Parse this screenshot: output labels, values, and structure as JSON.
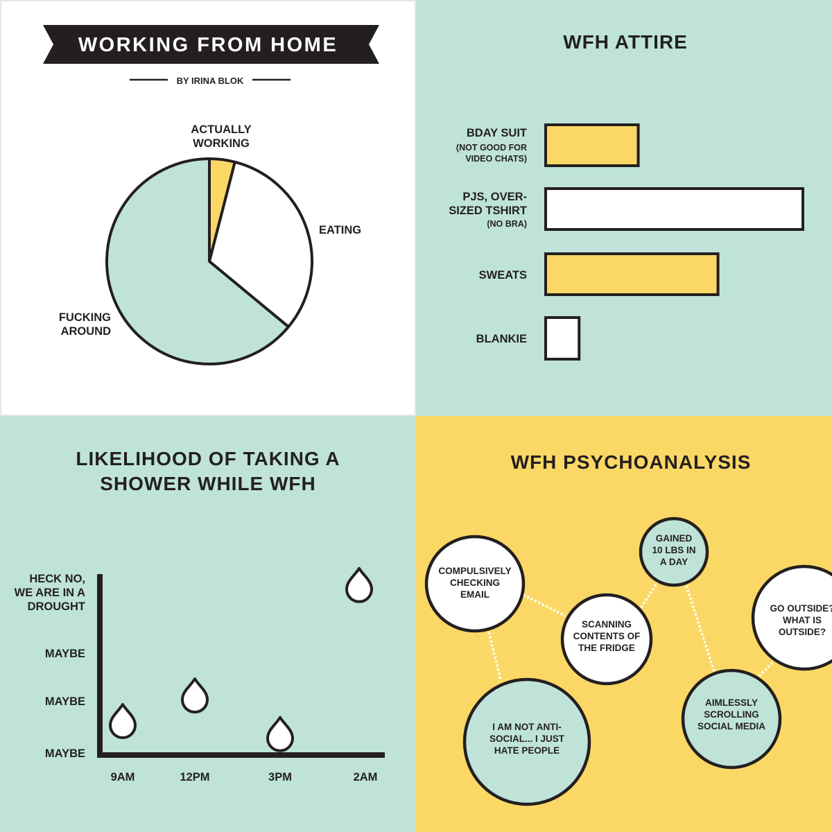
{
  "colors": {
    "dark": "#231f20",
    "teal": "#bfe3d9",
    "yellow": "#fbd865",
    "white": "#ffffff"
  },
  "header": {
    "title": "WORKING FROM HOME",
    "byline": "BY IRINA BLOK"
  },
  "chart_data": [
    {
      "type": "pie",
      "title": "",
      "slices": [
        {
          "label": [
            "ACTUALLY",
            "WORKING"
          ],
          "value": 4,
          "color": "#fbd865"
        },
        {
          "label": [
            "EATING"
          ],
          "value": 32,
          "color": "#ffffff"
        },
        {
          "label": [
            "FUCKING",
            "AROUND"
          ],
          "value": 64,
          "color": "#bfe3d9"
        }
      ]
    },
    {
      "type": "bar",
      "orientation": "horizontal",
      "title": "WFH ATTIRE",
      "categories": [
        {
          "label": [
            "BDAY SUIT"
          ],
          "sub": [
            "(NOT GOOD FOR",
            "VIDEO CHATS)"
          ]
        },
        {
          "label": [
            "PJS, OVER-",
            "SIZED TSHIRT"
          ],
          "sub": [
            "(NO BRA)"
          ]
        },
        {
          "label": [
            "SWEATS"
          ],
          "sub": []
        },
        {
          "label": [
            "BLANKIE"
          ],
          "sub": []
        }
      ],
      "values": [
        36,
        100,
        67,
        13
      ],
      "colors": [
        "#fbd865",
        "#ffffff",
        "#fbd865",
        "#ffffff"
      ]
    },
    {
      "type": "scatter",
      "title": [
        "LIKELIHOOD OF TAKING A",
        "SHOWER WHILE WFH"
      ],
      "x": [
        "9AM",
        "12PM",
        "3PM",
        "2AM"
      ],
      "y_ticks": [
        {
          "label": [
            "MAYBE"
          ],
          "level": 0
        },
        {
          "label": [
            "MAYBE"
          ],
          "level": 1
        },
        {
          "label": [
            "MAYBE"
          ],
          "level": 2
        },
        {
          "label": [
            "HECK NO,",
            "WE ARE IN A",
            "DROUGHT"
          ],
          "level": 3
        }
      ],
      "y": [
        0.6,
        1.1,
        0.35,
        3.2
      ],
      "marker": "water-drop-icon"
    }
  ],
  "psycho": {
    "title": "WFH PSYCHOANALYSIS",
    "bubbles": [
      {
        "text": [
          "COMPULSIVELY",
          "CHECKING",
          "EMAIL"
        ],
        "fill": "#ffffff"
      },
      {
        "text": [
          "GAINED",
          "10 LBS IN",
          "A DAY"
        ],
        "fill": "#bfe3d9"
      },
      {
        "text": [
          "SCANNING",
          "CONTENTS OF",
          "THE FRIDGE"
        ],
        "fill": "#ffffff"
      },
      {
        "text": [
          "GO OUTSIDE?",
          "WHAT IS",
          "OUTSIDE?"
        ],
        "fill": "#ffffff"
      },
      {
        "text": [
          "I AM NOT ANTI-",
          "SOCIAL... I JUST",
          "HATE PEOPLE"
        ],
        "fill": "#bfe3d9"
      },
      {
        "text": [
          "AIMLESSLY",
          "SCROLLING",
          "SOCIAL MEDIA"
        ],
        "fill": "#bfe3d9"
      }
    ]
  }
}
